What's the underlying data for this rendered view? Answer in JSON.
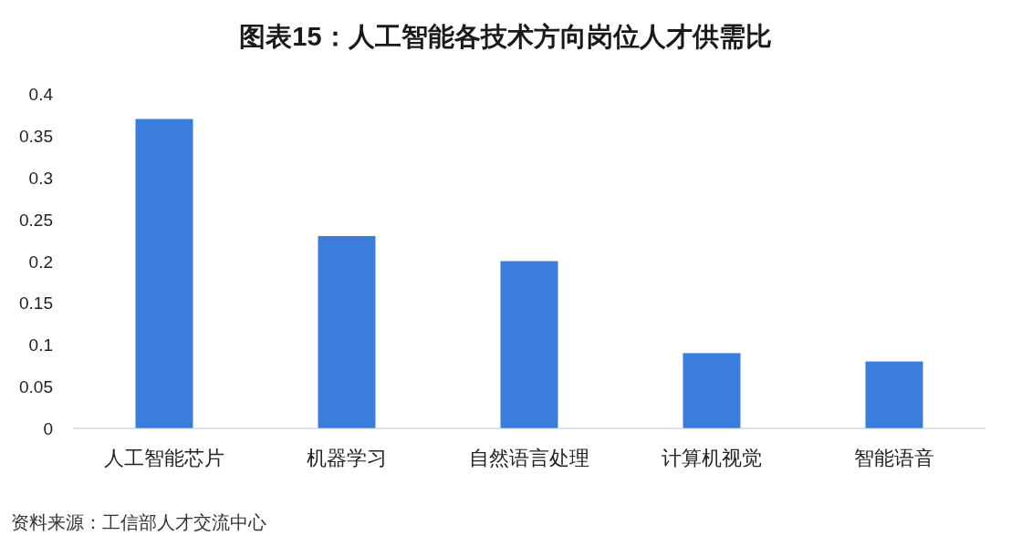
{
  "chart_data": {
    "type": "bar",
    "title": "图表15：人工智能各技术方向岗位人才供需比",
    "categories": [
      "人工智能芯片",
      "机器学习",
      "自然语言处理",
      "计算机视觉",
      "智能语音"
    ],
    "values": [
      0.37,
      0.23,
      0.2,
      0.09,
      0.08
    ],
    "color": "#3b7ddd",
    "ylim": [
      0,
      0.4
    ],
    "yticks": [
      0,
      0.05,
      0.1,
      0.15,
      0.2,
      0.25,
      0.3,
      0.35,
      0.4
    ],
    "annotations": [
      "资料来源：工信部人才交流中心"
    ]
  }
}
